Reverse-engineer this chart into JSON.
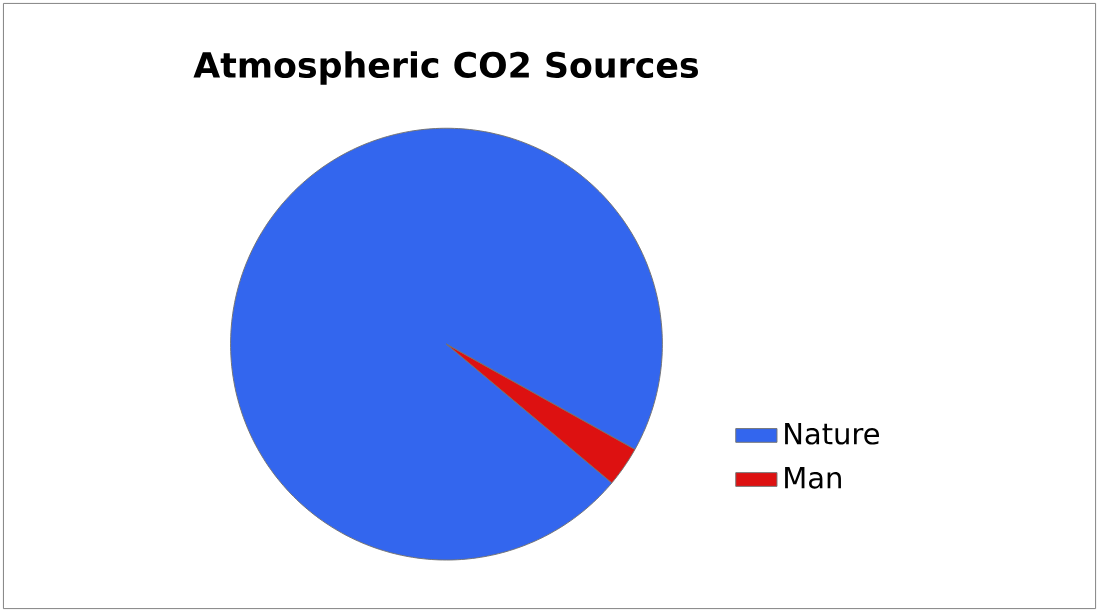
{
  "chart_data": {
    "type": "pie",
    "title": "Atmospheric CO2 Sources",
    "categories": [
      "Nature",
      "Man"
    ],
    "values": [
      97,
      3
    ],
    "colors": [
      "#3366ee",
      "#dd1111"
    ],
    "legend": "right"
  }
}
